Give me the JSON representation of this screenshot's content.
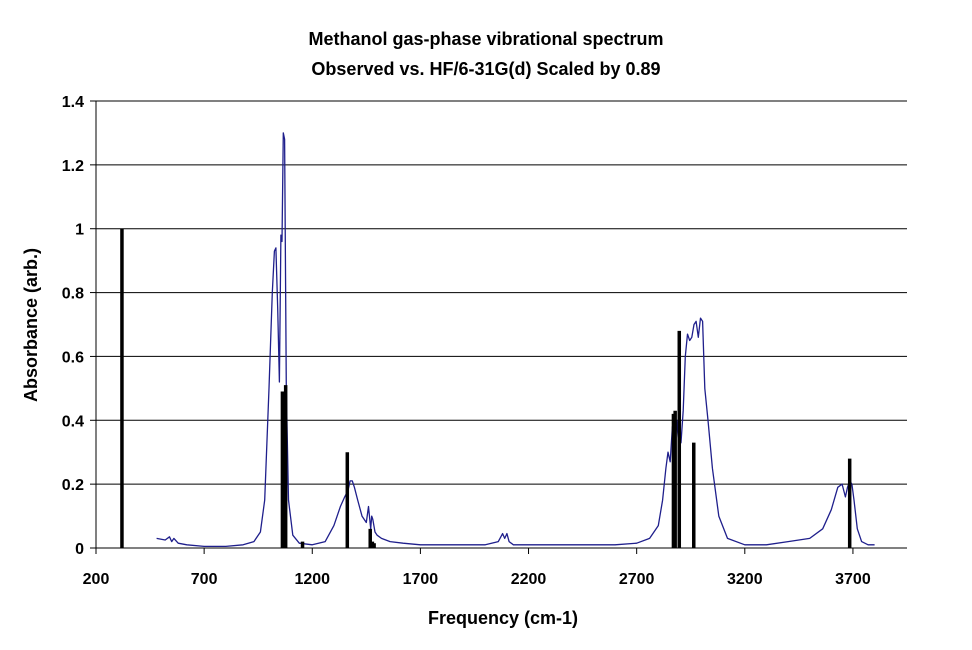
{
  "chart_data": {
    "type": "line",
    "title": "Methanol gas-phase vibrational spectrum",
    "subtitle": "Observed vs. HF/6-31G(d) Scaled by 0.89",
    "xlabel": "Frequency (cm-1)",
    "ylabel": "Absorbance (arb.)",
    "xlim": [
      200,
      3950
    ],
    "ylim": [
      0,
      1.4
    ],
    "x_ticks": [
      200,
      700,
      1200,
      1700,
      2200,
      2700,
      3200,
      3700
    ],
    "y_ticks": [
      0,
      0.2,
      0.4,
      0.6,
      0.8,
      1,
      1.2,
      1.4
    ],
    "y_tick_labels": [
      "0",
      "0.2",
      "0.4",
      "0.6",
      "0.8",
      "1",
      "1.2",
      "1.4"
    ],
    "grid": "horizontal",
    "legend": "none",
    "colors": {
      "observed": "#1f1f8c",
      "calculated": "#000000",
      "grid": "#000000"
    },
    "series": [
      {
        "style": "line",
        "x": [
          480,
          520,
          540,
          550,
          560,
          580,
          620,
          700,
          800,
          880,
          930,
          960,
          980,
          1000,
          1015,
          1025,
          1032,
          1040,
          1048,
          1055,
          1060,
          1066,
          1072,
          1080,
          1090,
          1110,
          1140,
          1200,
          1260,
          1300,
          1330,
          1350,
          1365,
          1375,
          1385,
          1395,
          1410,
          1430,
          1450,
          1460,
          1470,
          1475,
          1480,
          1490,
          1500,
          1520,
          1560,
          1620,
          1700,
          1800,
          1900,
          2000,
          2060,
          2080,
          2090,
          2100,
          2110,
          2130,
          2200,
          2400,
          2600,
          2700,
          2760,
          2800,
          2820,
          2835,
          2845,
          2855,
          2865,
          2875,
          2885,
          2895,
          2905,
          2915,
          2925,
          2935,
          2945,
          2955,
          2965,
          2975,
          2985,
          2995,
          3005,
          3015,
          3030,
          3050,
          3080,
          3120,
          3200,
          3300,
          3400,
          3500,
          3560,
          3600,
          3630,
          3650,
          3665,
          3675,
          3685,
          3695,
          3705,
          3720,
          3740,
          3770,
          3800
        ],
        "y": [
          0.03,
          0.025,
          0.035,
          0.02,
          0.03,
          0.015,
          0.01,
          0.005,
          0.005,
          0.01,
          0.02,
          0.05,
          0.15,
          0.5,
          0.8,
          0.93,
          0.94,
          0.75,
          0.52,
          0.98,
          0.96,
          1.3,
          1.28,
          0.5,
          0.15,
          0.04,
          0.015,
          0.01,
          0.02,
          0.07,
          0.13,
          0.16,
          0.18,
          0.21,
          0.21,
          0.19,
          0.15,
          0.1,
          0.08,
          0.13,
          0.06,
          0.1,
          0.09,
          0.05,
          0.04,
          0.03,
          0.02,
          0.015,
          0.01,
          0.01,
          0.01,
          0.01,
          0.02,
          0.045,
          0.03,
          0.045,
          0.02,
          0.01,
          0.01,
          0.01,
          0.01,
          0.015,
          0.03,
          0.07,
          0.15,
          0.25,
          0.3,
          0.27,
          0.38,
          0.28,
          0.4,
          0.32,
          0.33,
          0.43,
          0.6,
          0.67,
          0.65,
          0.66,
          0.7,
          0.71,
          0.66,
          0.72,
          0.71,
          0.5,
          0.4,
          0.25,
          0.1,
          0.03,
          0.01,
          0.01,
          0.02,
          0.03,
          0.06,
          0.12,
          0.19,
          0.2,
          0.16,
          0.19,
          0.21,
          0.2,
          0.15,
          0.06,
          0.02,
          0.01,
          0.01
        ]
      },
      {
        "style": "stick",
        "x": [
          320,
          1062,
          1077,
          1155,
          1362,
          1468,
          1478,
          1486,
          2870,
          2878,
          2897,
          2964,
          3685
        ],
        "y": [
          1.0,
          0.49,
          0.51,
          0.02,
          0.3,
          0.06,
          0.02,
          0.015,
          0.42,
          0.43,
          0.68,
          0.33,
          0.28
        ]
      }
    ]
  }
}
